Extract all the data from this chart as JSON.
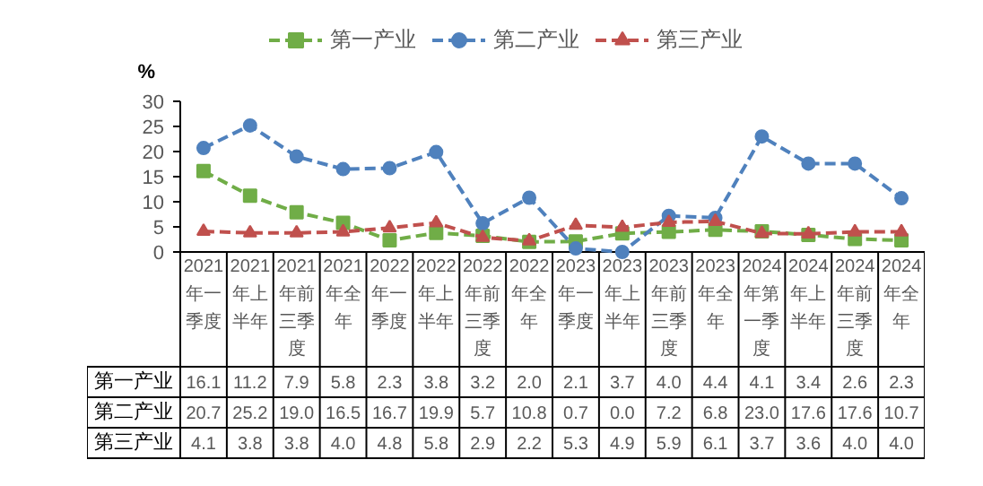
{
  "chart_data": {
    "type": "line",
    "ylabel": "%",
    "ylim": [
      0,
      30
    ],
    "yticks": [
      0,
      5,
      10,
      15,
      20,
      25,
      30
    ],
    "grid": false,
    "legend": "top",
    "line_style": "dashed",
    "categories": [
      "2021年一季度",
      "2021年上半年",
      "2021年前三季度",
      "2021年全年",
      "2022年一季度",
      "2022年上半年",
      "2022年前三季度",
      "2022年全年",
      "2023年一季度",
      "2023年上半年",
      "2023年前三季度",
      "2023年全年",
      "2024年第一季度",
      "2024年上半年",
      "2024年前三季度",
      "2024年全年"
    ],
    "series": [
      {
        "name": "第一产业",
        "color": "#70ad47",
        "marker": "square",
        "values": [
          16.1,
          11.2,
          7.9,
          5.8,
          2.3,
          3.8,
          3.2,
          2.0,
          2.1,
          3.7,
          4.0,
          4.4,
          4.1,
          3.4,
          2.6,
          2.3
        ],
        "value_labels": [
          "16.1",
          "11.2",
          "7.9",
          "5.8",
          "2.3",
          "3.8",
          "3.2",
          "2.0",
          "2.1",
          "3.7",
          "4.0",
          "4.4",
          "4.1",
          "3.4",
          "2.6",
          "2.3"
        ]
      },
      {
        "name": "第二产业",
        "color": "#4f81bd",
        "marker": "circle",
        "values": [
          20.7,
          25.2,
          19.0,
          16.5,
          16.7,
          19.9,
          5.7,
          10.8,
          0.7,
          0.0,
          7.2,
          6.8,
          23.0,
          17.6,
          17.6,
          10.7
        ],
        "value_labels": [
          "20.7",
          "25.2",
          "19.0",
          "16.5",
          "16.7",
          "19.9",
          "5.7",
          "10.8",
          "0.7",
          "0.0",
          "7.2",
          "6.8",
          "23.0",
          "17.6",
          "17.6",
          "10.7"
        ]
      },
      {
        "name": "第三产业",
        "color": "#c0504d",
        "marker": "triangle",
        "values": [
          4.1,
          3.8,
          3.8,
          4.0,
          4.8,
          5.8,
          2.9,
          2.2,
          5.3,
          4.9,
          5.9,
          6.1,
          3.7,
          3.6,
          4.0,
          4.0
        ],
        "value_labels": [
          "4.1",
          "3.8",
          "3.8",
          "4.0",
          "4.8",
          "5.8",
          "2.9",
          "2.2",
          "5.3",
          "4.9",
          "5.9",
          "6.1",
          "3.7",
          "3.6",
          "4.0",
          "4.0"
        ]
      }
    ]
  }
}
